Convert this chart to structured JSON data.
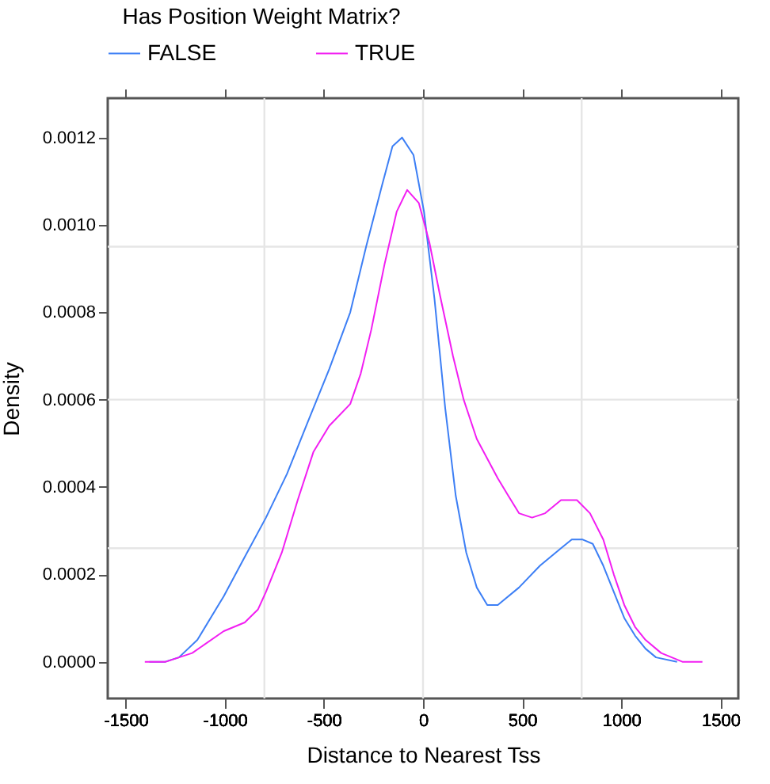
{
  "chart_data": {
    "type": "line",
    "xlabel": "Distance to Nearest Tss",
    "ylabel": "Density",
    "legend_title": "Has Position Weight Matrix?",
    "legend": "top",
    "xlim": [
      -1590,
      1590
    ],
    "ylim": [
      -8.4e-05,
      0.00129
    ],
    "xticks": [
      -1500,
      -1000,
      -500,
      0,
      500,
      1000,
      1500
    ],
    "yticks": [
      {
        "value": 0,
        "label": "0.0000"
      },
      {
        "value": 0.0002,
        "label": "0.0002"
      },
      {
        "value": 0.0004,
        "label": "0.0004"
      },
      {
        "value": 0.0006,
        "label": "0.0006"
      },
      {
        "value": 0.0008,
        "label": "0.0008"
      },
      {
        "value": 0.001,
        "label": "0.0010"
      },
      {
        "value": 0.0012,
        "label": "0.0012"
      }
    ],
    "ref_lines": [
      {
        "axis": "x",
        "value": -800,
        "color": "#e6e6e6"
      },
      {
        "axis": "x",
        "value": 0,
        "color": "#e6e6e6"
      },
      {
        "axis": "x",
        "value": 800,
        "color": "#e6e6e6"
      },
      {
        "axis": "y",
        "value": 0.00026,
        "color": "#e6e6e6"
      },
      {
        "axis": "y",
        "value": 0.0006,
        "color": "#e6e6e6"
      },
      {
        "axis": "y",
        "value": 0.00095,
        "color": "#e6e6e6"
      }
    ],
    "series": [
      {
        "name": "FALSE",
        "color": "#3d7ff5",
        "x": [
          -1380,
          -1300,
          -1231,
          -1138,
          -1005,
          -899,
          -792,
          -686,
          -580,
          -473,
          -367,
          -287,
          -207,
          -154,
          -106,
          -48,
          5,
          58,
          112,
          165,
          218,
          271,
          324,
          377,
          484,
          590,
          696,
          750,
          803,
          856,
          909,
          962,
          1015,
          1069,
          1122,
          1175,
          1281
        ],
        "values": [
          0,
          0,
          1e-05,
          5e-05,
          0.00015,
          0.00024,
          0.00033,
          0.00043,
          0.00055,
          0.00067,
          0.0008,
          0.00095,
          0.00109,
          0.00118,
          0.0012,
          0.00116,
          0.00103,
          0.00083,
          0.00058,
          0.00038,
          0.00025,
          0.00017,
          0.00013,
          0.00013,
          0.00017,
          0.00022,
          0.00026,
          0.00028,
          0.00028,
          0.00027,
          0.00022,
          0.00016,
          0.0001,
          6e-05,
          3e-05,
          1e-05,
          0
        ]
      },
      {
        "name": "TRUE",
        "color": "#f21ef2",
        "x": [
          -1403,
          -1297,
          -1164,
          -1005,
          -899,
          -832,
          -792,
          -712,
          -632,
          -553,
          -473,
          -367,
          -314,
          -261,
          -194,
          -133,
          -80,
          -21,
          32,
          85,
          151,
          205,
          271,
          377,
          430,
          484,
          550,
          616,
          696,
          776,
          842,
          909,
          962,
          1015,
          1069,
          1122,
          1201,
          1308,
          1409
        ],
        "values": [
          0,
          0,
          2e-05,
          7e-05,
          9e-05,
          0.00012,
          0.00016,
          0.00025,
          0.00037,
          0.00048,
          0.00054,
          0.00059,
          0.00066,
          0.00076,
          0.00091,
          0.00103,
          0.00108,
          0.00105,
          0.00096,
          0.00084,
          0.0007,
          0.0006,
          0.00051,
          0.00042,
          0.00038,
          0.00034,
          0.00033,
          0.00034,
          0.00037,
          0.00037,
          0.00034,
          0.00028,
          0.0002,
          0.00013,
          8e-05,
          5e-05,
          2e-05,
          0,
          0
        ]
      }
    ]
  }
}
